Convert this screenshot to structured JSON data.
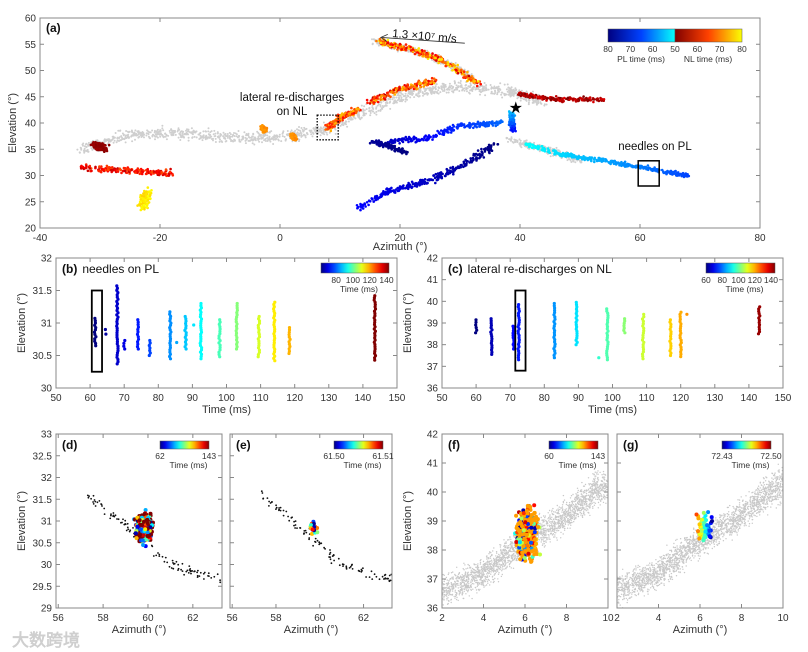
{
  "watermark": "大数跨境",
  "chart_data": [
    {
      "panel": "a",
      "type": "scatter",
      "label": "(a)",
      "xlabel": "Azimuth  (°)",
      "ylabel": "Elevation (°)",
      "xlim": [
        -40,
        80
      ],
      "ylim": [
        20,
        60
      ],
      "xticks": [
        -40,
        -20,
        0,
        20,
        40,
        60,
        80
      ],
      "yticks": [
        20,
        25,
        30,
        35,
        40,
        45,
        50,
        55,
        60
      ],
      "colorbar": {
        "ticks": [
          "80",
          "70",
          "60",
          "50",
          "60",
          "70",
          "80"
        ],
        "pl_label": "PL time (ms)",
        "nl_label": "NL time (ms)",
        "pl_range": [
          80,
          50
        ],
        "nl_range": [
          50,
          80
        ]
      },
      "annotations": {
        "velocity": "1.3 ×10⁷ m/s",
        "velocity_arrow": {
          "from": [
            30.8,
            55.2
          ],
          "to": [
            16.8,
            56.3
          ]
        },
        "lateral_line1": "lateral re-discharges",
        "lateral_line2": "on NL",
        "lateral_box": {
          "az": [
            6.2,
            9.7
          ],
          "el": [
            36.8,
            41.5
          ]
        },
        "needles": "needles on PL",
        "needles_box": {
          "az": [
            59.7,
            63.2
          ],
          "el": [
            28,
            32.8
          ]
        },
        "initiation_star": [
          39.3,
          42.9
        ]
      },
      "branches": [
        {
          "kind": "gray",
          "path": [
            [
              -33,
              35
            ],
            [
              -25,
              38
            ],
            [
              -15,
              38
            ],
            [
              -5,
              37
            ],
            [
              2,
              37.5
            ],
            [
              8,
              39
            ],
            [
              14,
              42
            ],
            [
              22,
              46
            ],
            [
              30,
              47
            ],
            [
              38,
              46
            ],
            [
              44,
              44
            ]
          ],
          "spread": 1.6
        },
        {
          "kind": "gray",
          "path": [
            [
              16,
              55.5
            ],
            [
              25,
              53
            ],
            [
              32,
              49
            ]
          ],
          "spread": 1.0
        },
        {
          "kind": "gray",
          "path": [
            [
              38,
              37
            ],
            [
              50,
              33
            ]
          ],
          "spread": 1.0
        },
        {
          "kind": "NL",
          "path": [
            [
              16.5,
              55.5
            ],
            [
              22,
              54
            ],
            [
              27,
              52
            ],
            [
              31,
              49
            ],
            [
              33,
              47.5
            ]
          ],
          "time": [
            55,
            80
          ],
          "spread": 0.9
        },
        {
          "kind": "NL",
          "path": [
            [
              26,
              48
            ],
            [
              20,
              46.5
            ],
            [
              15,
              44
            ]
          ],
          "time": [
            55,
            75
          ],
          "spread": 0.9
        },
        {
          "kind": "NL",
          "path": [
            [
              13,
              42.5
            ],
            [
              10,
              41
            ],
            [
              8,
              39
            ]
          ],
          "time": [
            60,
            75
          ],
          "spread": 0.8
        },
        {
          "kind": "NL",
          "path": [
            [
              40,
              45.5
            ],
            [
              46,
              44.5
            ],
            [
              54,
              44.5
            ]
          ],
          "time": [
            50,
            58
          ],
          "spread": 0.6
        },
        {
          "kind": "NL",
          "path": [
            [
              -31,
              36
            ],
            [
              -29,
              35
            ]
          ],
          "time": [
            50,
            53
          ],
          "spread": 1.0
        },
        {
          "kind": "NL",
          "path": [
            [
              -33,
              31.5
            ],
            [
              -26,
              31
            ],
            [
              -18,
              30.5
            ]
          ],
          "time": [
            55,
            66
          ],
          "spread": 0.9
        },
        {
          "kind": "NL",
          "path": [
            [
              -23,
              24
            ],
            [
              -22,
              27
            ]
          ],
          "time": [
            76,
            80
          ],
          "spread": 1.3
        },
        {
          "kind": "NL",
          "path": [
            [
              -3,
              39.2
            ],
            [
              -2.5,
              38.5
            ]
          ],
          "time": [
            70,
            72
          ],
          "spread": 0.5
        },
        {
          "kind": "NL",
          "path": [
            [
              2,
              37.8
            ],
            [
              2.5,
              37
            ]
          ],
          "time": [
            70,
            72
          ],
          "spread": 0.5
        },
        {
          "kind": "PL",
          "path": [
            [
              38.5,
              42
            ],
            [
              39,
              38.5
            ]
          ],
          "time": [
            55,
            70
          ],
          "spread": 0.8
        },
        {
          "kind": "PL",
          "path": [
            [
              37,
              40
            ],
            [
              30,
              39.5
            ],
            [
              24,
              37
            ],
            [
              18,
              36.5
            ]
          ],
          "time": [
            62,
            75
          ],
          "spread": 0.8
        },
        {
          "kind": "PL",
          "path": [
            [
              15.5,
              36.5
            ],
            [
              21,
              34.5
            ]
          ],
          "time": [
            78,
            80
          ],
          "spread": 0.7
        },
        {
          "kind": "PL",
          "path": [
            [
              13,
              24
            ],
            [
              18,
              27
            ],
            [
              25,
              29
            ],
            [
              32,
              33
            ],
            [
              36,
              36
            ]
          ],
          "time": [
            70,
            80
          ],
          "spread": 0.9
        },
        {
          "kind": "PL",
          "path": [
            [
              41,
              36
            ],
            [
              47,
              34
            ],
            [
              53,
              33
            ],
            [
              58,
              32
            ],
            [
              63,
              31
            ],
            [
              68,
              30
            ]
          ],
          "time": [
            50,
            65
          ],
          "spread": 0.6
        }
      ]
    },
    {
      "panel": "b",
      "type": "scatter",
      "label": "(b)",
      "title": "needles on PL",
      "xlabel": "Time (ms)",
      "ylabel": "Elevation (°)",
      "xlim": [
        50,
        150
      ],
      "ylim": [
        30,
        32
      ],
      "xticks": [
        50,
        60,
        70,
        80,
        90,
        100,
        110,
        120,
        130,
        140,
        150
      ],
      "yticks": [
        30,
        30.5,
        31,
        31.5,
        32
      ],
      "colorbar": {
        "range": [
          62,
          143
        ],
        "ticks": [
          80,
          100,
          120,
          140
        ],
        "label": "Time (ms)"
      },
      "highlight_box": {
        "time": [
          60.5,
          63.5
        ],
        "el": [
          30.25,
          31.5
        ]
      },
      "stripes": [
        {
          "t": 61.5,
          "el": [
            30.65,
            31.07
          ]
        },
        {
          "t": 64.5,
          "el": [
            30.83,
            30.9
          ]
        },
        {
          "t": 68,
          "el": [
            30.37,
            31.57
          ]
        },
        {
          "t": 70,
          "el": [
            30.6,
            30.73
          ]
        },
        {
          "t": 74,
          "el": [
            30.6,
            31.05
          ]
        },
        {
          "t": 77.5,
          "el": [
            30.5,
            30.73
          ]
        },
        {
          "t": 83.5,
          "el": [
            30.45,
            31.17
          ]
        },
        {
          "t": 85.5,
          "el": [
            30.7,
            30.7
          ]
        },
        {
          "t": 88,
          "el": [
            30.6,
            31.1
          ]
        },
        {
          "t": 90.5,
          "el": [
            30.97,
            30.97
          ]
        },
        {
          "t": 92.5,
          "el": [
            30.45,
            31.3
          ]
        },
        {
          "t": 98,
          "el": [
            30.48,
            31.05
          ]
        },
        {
          "t": 103,
          "el": [
            30.6,
            31.3
          ]
        },
        {
          "t": 109.5,
          "el": [
            30.48,
            31.1
          ]
        },
        {
          "t": 114,
          "el": [
            30.42,
            31.32
          ]
        },
        {
          "t": 118.5,
          "el": [
            30.53,
            30.93
          ]
        },
        {
          "t": 143.5,
          "el": [
            30.43,
            31.42
          ]
        }
      ]
    },
    {
      "panel": "c",
      "type": "scatter",
      "label": "(c)",
      "title": "lateral re-discharges on NL",
      "xlabel": "Time (ms)",
      "ylabel": "Elevation (°)",
      "xlim": [
        50,
        150
      ],
      "ylim": [
        36,
        42
      ],
      "xticks": [
        50,
        60,
        70,
        80,
        90,
        100,
        110,
        120,
        130,
        140,
        150
      ],
      "yticks": [
        36,
        37,
        38,
        39,
        40,
        41,
        42
      ],
      "colorbar": {
        "range": [
          60,
          145
        ],
        "ticks": [
          60,
          80,
          100,
          120,
          140
        ],
        "label": "Time (ms)"
      },
      "highlight_box": {
        "time": [
          71.5,
          74.5
        ],
        "el": [
          36.8,
          40.5
        ]
      },
      "stripes": [
        {
          "t": 60,
          "el": [
            38.55,
            39.15
          ]
        },
        {
          "t": 64.5,
          "el": [
            37.55,
            39.2
          ]
        },
        {
          "t": 71,
          "el": [
            37.8,
            38.85
          ]
        },
        {
          "t": 72.5,
          "el": [
            37.3,
            39.85
          ]
        },
        {
          "t": 83,
          "el": [
            37.4,
            39.9
          ]
        },
        {
          "t": 89.5,
          "el": [
            38,
            39.95
          ]
        },
        {
          "t": 96,
          "el": [
            37.4,
            37.4
          ]
        },
        {
          "t": 98.5,
          "el": [
            37.3,
            39.65
          ]
        },
        {
          "t": 103.5,
          "el": [
            38.55,
            39.2
          ]
        },
        {
          "t": 109,
          "el": [
            37.35,
            39.4
          ]
        },
        {
          "t": 117,
          "el": [
            37.5,
            39.15
          ]
        },
        {
          "t": 120,
          "el": [
            37.45,
            39.5
          ]
        },
        {
          "t": 122,
          "el": [
            39.4,
            39.4
          ]
        },
        {
          "t": 143,
          "el": [
            38.5,
            39.75
          ]
        }
      ]
    },
    {
      "panel": "d",
      "type": "scatter",
      "label": "(d)",
      "xlabel": "Azimuth  (°)",
      "ylabel": "Elevation (°)",
      "xlim": [
        55.9,
        63.3
      ],
      "ylim": [
        29,
        33
      ],
      "xticks": [
        56,
        58,
        60,
        62
      ],
      "yticks": [
        29,
        29.5,
        30,
        30.5,
        31,
        31.5,
        32,
        32.5,
        33
      ],
      "colorbar": {
        "min_label": "62",
        "max_label": "143",
        "label": "Time (ms)"
      },
      "background": {
        "style": "black-dots",
        "path": [
          [
            57.3,
            31.6
          ],
          [
            59,
            30.9
          ],
          [
            61,
            30
          ],
          [
            63.5,
            29.6
          ]
        ],
        "spread": 0.3
      },
      "cluster": {
        "center": [
          59.8,
          30.85
        ],
        "spread": [
          0.5,
          0.45
        ]
      }
    },
    {
      "panel": "e",
      "type": "scatter",
      "label": "(e)",
      "xlabel": "Azimuth  (°)",
      "ylabel": "",
      "xlim": [
        55.9,
        63.3
      ],
      "ylim": [
        29,
        33
      ],
      "xticks": [
        56,
        58,
        60,
        62
      ],
      "yticks": [],
      "colorbar": {
        "min_label": "61.50",
        "max_label": "61.51",
        "label": "Time (ms)"
      },
      "background": {
        "style": "black-dots",
        "path": [
          [
            57.3,
            31.6
          ],
          [
            59,
            30.9
          ],
          [
            61,
            30
          ],
          [
            63.5,
            29.6
          ]
        ],
        "spread": 0.3
      },
      "cluster": {
        "center": [
          59.72,
          30.85
        ],
        "spread": [
          0.25,
          0.2
        ]
      }
    },
    {
      "panel": "f",
      "type": "scatter",
      "label": "(f)",
      "xlabel": "Azimuth  (°)",
      "ylabel": "Elevation (°)",
      "xlim": [
        2,
        10
      ],
      "ylim": [
        36,
        42
      ],
      "xticks": [
        2,
        4,
        6,
        8,
        10
      ],
      "yticks": [
        36,
        37,
        38,
        39,
        40,
        41,
        42
      ],
      "colorbar": {
        "min_label": "60",
        "max_label": "143",
        "label": "Time (ms)"
      },
      "background": {
        "style": "gray-dots",
        "path": [
          [
            2,
            36.6
          ],
          [
            4,
            37.2
          ],
          [
            6,
            38.3
          ],
          [
            8,
            39.2
          ],
          [
            10,
            40.4
          ]
        ],
        "spread": 0.7
      },
      "cluster": {
        "center": [
          6.1,
          38.6
        ],
        "spread": [
          0.7,
          1.2
        ]
      }
    },
    {
      "panel": "g",
      "type": "scatter",
      "label": "(g)",
      "xlabel": "Azimuth  (°)",
      "ylabel": "",
      "xlim": [
        2,
        10
      ],
      "ylim": [
        36,
        42
      ],
      "xticks": [
        2,
        4,
        6,
        8,
        10
      ],
      "yticks": [],
      "colorbar": {
        "min_label": "72.43",
        "max_label": "72.50",
        "label": "Time (ms)"
      },
      "background": {
        "style": "gray-dots",
        "path": [
          [
            2,
            36.6
          ],
          [
            4,
            37.2
          ],
          [
            6,
            38.3
          ],
          [
            8,
            39.2
          ],
          [
            10,
            40.4
          ]
        ],
        "spread": 0.7
      },
      "cluster": {
        "center": [
          6.2,
          38.7
        ],
        "spread": [
          0.5,
          0.7
        ]
      }
    }
  ]
}
